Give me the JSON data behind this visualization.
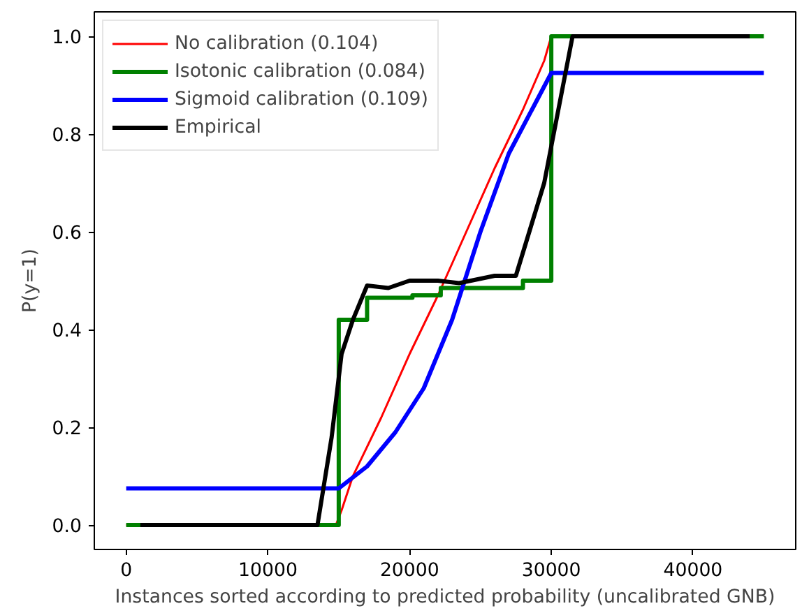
{
  "chart_data": {
    "type": "line",
    "xlabel": "Instances sorted according to predicted probability (uncalibrated GNB)",
    "ylabel": "P(y=1)",
    "xlim": [
      -2250,
      47250
    ],
    "ylim": [
      -0.05,
      1.05
    ],
    "xticks": [
      0,
      10000,
      20000,
      30000,
      40000
    ],
    "yticks": [
      {
        "value": 0,
        "label": "0.0"
      },
      {
        "value": 0.2,
        "label": "0.2"
      },
      {
        "value": 0.4,
        "label": "0.4"
      },
      {
        "value": 0.6,
        "label": "0.6"
      },
      {
        "value": 0.8,
        "label": "0.8"
      },
      {
        "value": 1,
        "label": "1.0"
      }
    ],
    "grid": false,
    "legend": "top left",
    "series": [
      {
        "name": "No calibration (0.104)",
        "color": "#ff0000",
        "x": [
          0,
          14800,
          15200,
          16000,
          18000,
          20000,
          22000,
          24000,
          26000,
          28000,
          29500,
          30000
        ],
        "values": [
          0,
          0,
          0.03,
          0.1,
          0.22,
          0.35,
          0.47,
          0.6,
          0.73,
          0.85,
          0.95,
          1.0
        ]
      },
      {
        "name": "Isotonic calibration (0.084)",
        "color": "#008000",
        "x": [
          0,
          15000,
          15000,
          17000,
          17000,
          20200,
          20200,
          22200,
          22200,
          28000,
          28000,
          30000,
          30000,
          45000
        ],
        "values": [
          0,
          0,
          0.42,
          0.42,
          0.465,
          0.465,
          0.47,
          0.47,
          0.485,
          0.485,
          0.5,
          0.5,
          1.0,
          1.0
        ]
      },
      {
        "name": "Sigmoid calibration (0.109)",
        "color": "#0000ff",
        "x": [
          0,
          15000,
          17000,
          19000,
          21000,
          23000,
          25000,
          27000,
          29000,
          30000,
          45000
        ],
        "values": [
          0.075,
          0.075,
          0.12,
          0.19,
          0.28,
          0.42,
          0.6,
          0.76,
          0.87,
          0.925,
          0.925
        ]
      },
      {
        "name": "Empirical",
        "color": "#000000",
        "x": [
          1000,
          13500,
          14500,
          15200,
          16000,
          17000,
          18500,
          20000,
          22000,
          23500,
          26000,
          27500,
          29500,
          31500,
          44000
        ],
        "values": [
          0,
          0,
          0.18,
          0.35,
          0.42,
          0.49,
          0.485,
          0.5,
          0.5,
          0.495,
          0.51,
          0.51,
          0.7,
          1.0,
          1.0
        ]
      }
    ]
  }
}
